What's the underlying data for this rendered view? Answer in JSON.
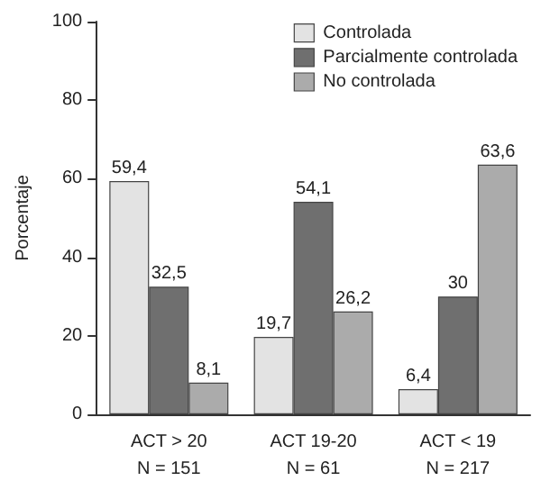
{
  "chart_data": {
    "type": "bar",
    "ylabel": "Porcentaje",
    "categories": [
      "ACT > 20\nN = 151",
      "ACT 19-20\nN = 61",
      "ACT < 19\nN = 217"
    ],
    "series": [
      {
        "name": "Controlada",
        "color": "#e3e3e3",
        "values": [
          59.4,
          19.7,
          6.4
        ],
        "value_labels": [
          "59,4",
          "19,7",
          "6,4"
        ]
      },
      {
        "name": "Parcialmente controlada",
        "color": "#6f6f6f",
        "values": [
          32.5,
          54.1,
          30
        ],
        "value_labels": [
          "32,5",
          "54,1",
          "30"
        ]
      },
      {
        "name": "No controlada",
        "color": "#ababab",
        "values": [
          8.1,
          26.2,
          63.6
        ],
        "value_labels": [
          "8,1",
          "26,2",
          "63,6"
        ]
      }
    ],
    "ylim": [
      0,
      100
    ],
    "yticks": [
      0,
      20,
      40,
      60,
      80,
      100
    ],
    "grid": false,
    "legend": "top right"
  }
}
